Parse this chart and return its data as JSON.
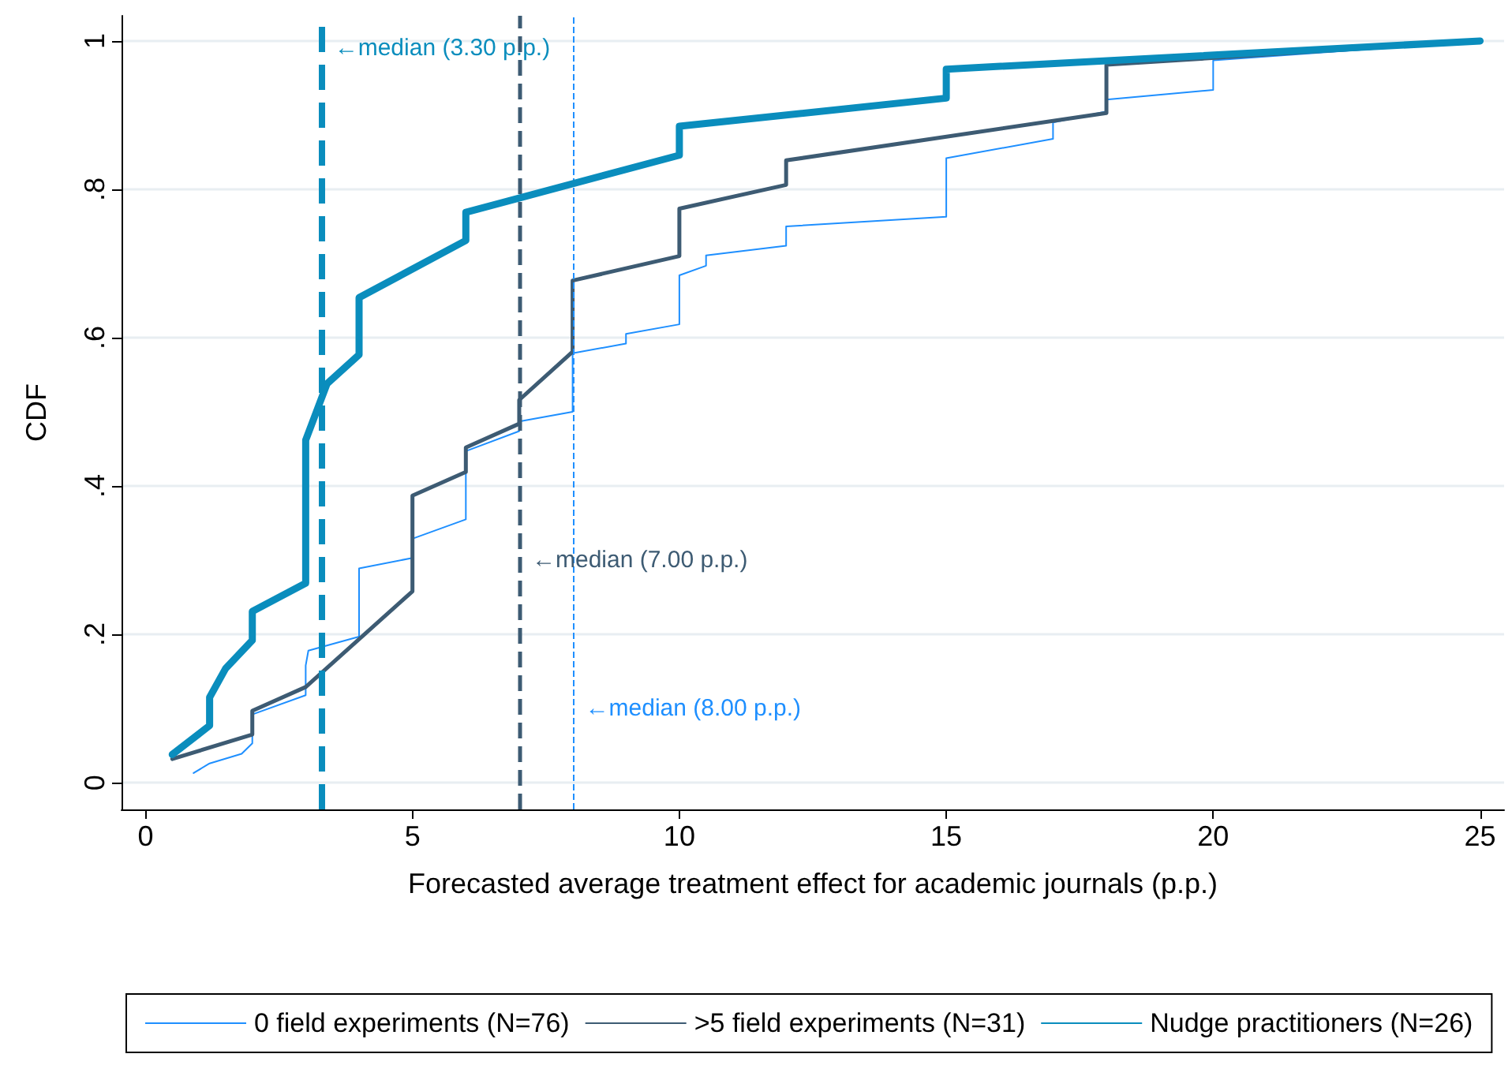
{
  "chart_data": {
    "type": "line",
    "xlabel": "Forecasted average treatment effect for academic journals (p.p.)",
    "ylabel": "CDF",
    "xlim": [
      -0.45,
      25.45
    ],
    "xticks": [
      0,
      5,
      10,
      15,
      20,
      25
    ],
    "ylim": [
      -0.036,
      1.034
    ],
    "yticks": [
      {
        "value": 0,
        "label": "0"
      },
      {
        "value": 0.2,
        "label": ".2"
      },
      {
        "value": 0.4,
        "label": ".4"
      },
      {
        "value": 0.6,
        "label": ".6"
      },
      {
        "value": 0.8,
        "label": ".8"
      },
      {
        "value": 1,
        "label": "1"
      }
    ],
    "grid": "y",
    "legend": "bottom",
    "marker": "none",
    "series": [
      {
        "name": "0 field experiments (N=76)",
        "color": "#1e8fff",
        "x": [
          0.9,
          1.2,
          1.8,
          2,
          2,
          3,
          3,
          3.05,
          4,
          4,
          5,
          5,
          6,
          6,
          7,
          7,
          8,
          8,
          9,
          9,
          10,
          10,
          10.5,
          10.5,
          12,
          12,
          15,
          15,
          17,
          17,
          18,
          18,
          20,
          20,
          25
        ],
        "values": [
          0.013,
          0.026,
          0.039,
          0.053,
          0.092,
          0.118,
          0.158,
          0.178,
          0.197,
          0.289,
          0.303,
          0.329,
          0.355,
          0.447,
          0.474,
          0.487,
          0.5,
          0.579,
          0.592,
          0.605,
          0.618,
          0.684,
          0.697,
          0.711,
          0.724,
          0.75,
          0.763,
          0.842,
          0.868,
          0.89,
          0.905,
          0.921,
          0.934,
          0.974,
          1
        ]
      },
      {
        "name": ">5 field experiments (N=31)",
        "color": "#3d5b73",
        "x": [
          0.5,
          2,
          2,
          3,
          5,
          5,
          6,
          6,
          7,
          7,
          8,
          8,
          10,
          10,
          12,
          12,
          18,
          18,
          25
        ],
        "values": [
          0.032,
          0.065,
          0.097,
          0.129,
          0.258,
          0.387,
          0.419,
          0.452,
          0.484,
          0.516,
          0.581,
          0.677,
          0.71,
          0.774,
          0.806,
          0.839,
          0.903,
          0.968,
          1
        ]
      },
      {
        "name": "Nudge practitioners (N=26)",
        "color": "#0a8dbd",
        "x": [
          0.5,
          1.2,
          1.2,
          1.5,
          2,
          2,
          3,
          3,
          3.2,
          3.4,
          4,
          4,
          6,
          6,
          10,
          10,
          15,
          15,
          25
        ],
        "values": [
          0.038,
          0.077,
          0.115,
          0.154,
          0.192,
          0.231,
          0.269,
          0.462,
          0.5,
          0.538,
          0.577,
          0.654,
          0.731,
          0.769,
          0.846,
          0.885,
          0.923,
          0.962,
          1
        ]
      }
    ],
    "ref_lines": [
      {
        "axis": "x",
        "value": 3.3,
        "label": "←median (3.30 p.p.)",
        "color": "#0a8dbd",
        "line_style": "dashed"
      },
      {
        "axis": "x",
        "value": 7,
        "label": "←median (7.00 p.p.)",
        "color": "#3d5b73",
        "line_style": "dashed"
      },
      {
        "axis": "x",
        "value": 8,
        "label": "←median (8.00 p.p.)",
        "color": "#1e8fff",
        "line_style": "dashed"
      }
    ]
  }
}
